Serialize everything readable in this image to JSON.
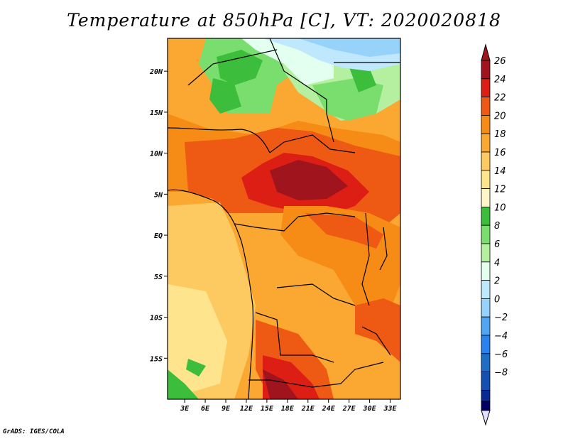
{
  "title": "Temperature at 850hPa [C], VT: 2020020818",
  "credit": "GrADS: IGES/COLA",
  "map": {
    "lat_range": [
      -20,
      24
    ],
    "lon_range": [
      0.5,
      34.5
    ],
    "lat_ticks": [
      {
        "value": 20,
        "label": "20N"
      },
      {
        "value": 15,
        "label": "15N"
      },
      {
        "value": 10,
        "label": "10N"
      },
      {
        "value": 5,
        "label": "5N"
      },
      {
        "value": 0,
        "label": "EQ"
      },
      {
        "value": -5,
        "label": "5S"
      },
      {
        "value": -10,
        "label": "10S"
      },
      {
        "value": -15,
        "label": "15S"
      }
    ],
    "lon_ticks": [
      {
        "value": 3,
        "label": "3E"
      },
      {
        "value": 6,
        "label": "6E"
      },
      {
        "value": 9,
        "label": "9E"
      },
      {
        "value": 12,
        "label": "12E"
      },
      {
        "value": 15,
        "label": "15E"
      },
      {
        "value": 18,
        "label": "18E"
      },
      {
        "value": 21,
        "label": "21E"
      },
      {
        "value": 24,
        "label": "24E"
      },
      {
        "value": 27,
        "label": "27E"
      },
      {
        "value": 30,
        "label": "30E"
      },
      {
        "value": 33,
        "label": "33E"
      }
    ]
  },
  "colorbar": {
    "levels": [
      {
        "label": "26",
        "color": "#a0141e"
      },
      {
        "label": "24",
        "color": "#dc1e14"
      },
      {
        "label": "22",
        "color": "#ee5a14"
      },
      {
        "label": "20",
        "color": "#f68c16"
      },
      {
        "label": "18",
        "color": "#fba832"
      },
      {
        "label": "16",
        "color": "#fdca62"
      },
      {
        "label": "14",
        "color": "#fee48c"
      },
      {
        "label": "12",
        "color": "#fff5c8"
      },
      {
        "label": "10",
        "color": "#3cbe3c"
      },
      {
        "label": "8",
        "color": "#7ade6e"
      },
      {
        "label": "6",
        "color": "#b4f0a0"
      },
      {
        "label": "4",
        "color": "#e2fff0"
      },
      {
        "label": "2",
        "color": "#bfe8fe"
      },
      {
        "label": "0",
        "color": "#96d2fa"
      },
      {
        "label": "−2",
        "color": "#50a5f5"
      },
      {
        "label": "−4",
        "color": "#2882f0"
      },
      {
        "label": "−6",
        "color": "#1e6ec8"
      },
      {
        "label": "−8",
        "color": "#1450b4"
      }
    ],
    "over_color": "#a0141e",
    "under_color": "#e1e1ff",
    "bottom_mid_color": "#0a2896",
    "bottom_color": "#000064"
  }
}
